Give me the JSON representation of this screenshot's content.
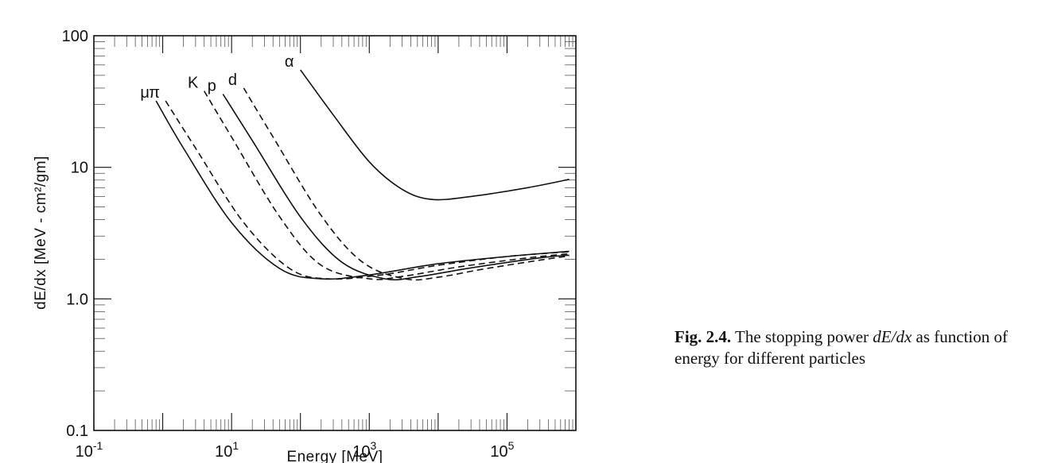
{
  "chart_data": {
    "type": "line",
    "title": "",
    "xlabel": "Energy [MeV]",
    "ylabel": "dE/dx [MeV - cm²/gm]",
    "xscale": "log",
    "yscale": "log",
    "xlim": [
      0.1,
      1000000
    ],
    "ylim": [
      0.1,
      100
    ],
    "xticks": [
      {
        "value": 0.1,
        "base": "10",
        "exp": "-1"
      },
      {
        "value": 10,
        "base": "10",
        "exp": "1"
      },
      {
        "value": 1000,
        "base": "10",
        "exp": "3"
      },
      {
        "value": 100000,
        "base": "10",
        "exp": "5"
      }
    ],
    "yticks": [
      {
        "value": 0.1,
        "label": "0.1"
      },
      {
        "value": 1,
        "label": "1.0"
      },
      {
        "value": 10,
        "label": "10"
      },
      {
        "value": 100,
        "label": "100"
      }
    ],
    "grid": false,
    "legend": "none",
    "series": [
      {
        "name": "μ",
        "style": "solid",
        "points": [
          [
            0.8,
            32
          ],
          [
            2,
            14
          ],
          [
            10,
            3.8
          ],
          [
            50,
            1.7
          ],
          [
            200,
            1.42
          ],
          [
            1000,
            1.52
          ],
          [
            10000,
            1.85
          ],
          [
            100000,
            2.1
          ],
          [
            800000,
            2.3
          ]
        ]
      },
      {
        "name": "π",
        "style": "dashed",
        "points": [
          [
            1.1,
            32
          ],
          [
            3,
            14
          ],
          [
            15,
            3.8
          ],
          [
            70,
            1.7
          ],
          [
            250,
            1.42
          ],
          [
            1500,
            1.52
          ],
          [
            10000,
            1.8
          ],
          [
            100000,
            2.1
          ],
          [
            800000,
            2.28
          ]
        ]
      },
      {
        "name": "K",
        "style": "dashed",
        "points": [
          [
            4,
            38
          ],
          [
            10,
            17
          ],
          [
            50,
            4.2
          ],
          [
            200,
            1.8
          ],
          [
            1000,
            1.42
          ],
          [
            3000,
            1.48
          ],
          [
            20000,
            1.75
          ],
          [
            200000,
            2.05
          ],
          [
            800000,
            2.2
          ]
        ]
      },
      {
        "name": "p",
        "style": "solid",
        "points": [
          [
            7.5,
            36
          ],
          [
            20,
            16
          ],
          [
            100,
            4.2
          ],
          [
            400,
            1.9
          ],
          [
            1700,
            1.42
          ],
          [
            5000,
            1.47
          ],
          [
            30000,
            1.72
          ],
          [
            300000,
            2.05
          ],
          [
            800000,
            2.15
          ]
        ]
      },
      {
        "name": "d",
        "style": "dashed",
        "points": [
          [
            15,
            40
          ],
          [
            40,
            17
          ],
          [
            200,
            4.3
          ],
          [
            800,
            1.9
          ],
          [
            3300,
            1.42
          ],
          [
            10000,
            1.46
          ],
          [
            50000,
            1.7
          ],
          [
            500000,
            2.05
          ],
          [
            800000,
            2.1
          ]
        ]
      },
      {
        "name": "α",
        "style": "solid",
        "points": [
          [
            100,
            55
          ],
          [
            300,
            25
          ],
          [
            1000,
            11
          ],
          [
            3000,
            6.8
          ],
          [
            8000,
            5.7
          ],
          [
            30000,
            6.0
          ],
          [
            200000,
            7.0
          ],
          [
            800000,
            8.1
          ]
        ]
      }
    ]
  },
  "caption": {
    "label": "Fig. 2.4.",
    "text_before": "The stopping power",
    "symbol": "dE/dx",
    "text_after": "as function of energy for different particles"
  }
}
